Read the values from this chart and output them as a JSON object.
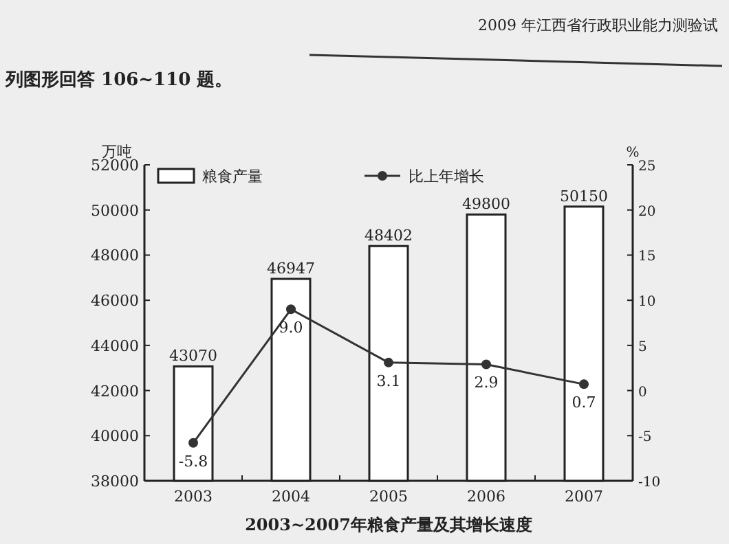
{
  "chart_data": {
    "type": "bar",
    "title": "2003~2007年粮食产量及其增长速度",
    "ylabel": "万吨",
    "y2label": "%",
    "annotations": [
      "2009 年江西省行政职业能力测验试",
      "列图形回答 106~110 题。"
    ],
    "categories": [
      "2003",
      "2004",
      "2005",
      "2006",
      "2007"
    ],
    "series": [
      {
        "name": "粮食产量",
        "color": "#ffffff",
        "values": [
          43070,
          46947,
          48402,
          49800,
          50150
        ],
        "value_labels": [
          "43070",
          "46947",
          "48402",
          "49800",
          "50150"
        ]
      },
      {
        "name": "比上年增长",
        "type": "line",
        "axis": "y2",
        "color": "#333333",
        "values": [
          -5.8,
          9.0,
          3.1,
          2.9,
          0.7
        ],
        "value_labels": [
          "-5.8",
          "9.0",
          "3.1",
          "2.9",
          "0.7"
        ]
      }
    ],
    "ylim": [
      38000,
      52000
    ],
    "yticks": [
      38000,
      40000,
      42000,
      44000,
      46000,
      48000,
      50000,
      52000
    ],
    "y2lim": [
      -10,
      25
    ],
    "y2ticks": [
      -10,
      -5,
      0,
      5,
      10,
      15,
      20,
      25
    ],
    "legend": "top",
    "marker": "circle",
    "line_style": "solid",
    "grid": false
  }
}
